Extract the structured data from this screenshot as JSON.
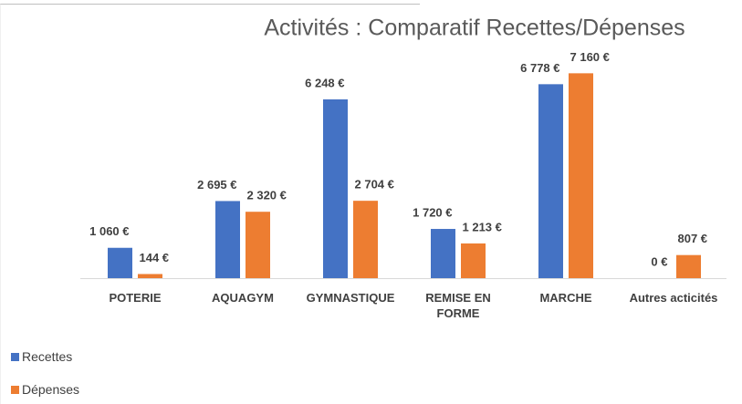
{
  "chart_data": {
    "type": "bar",
    "title": "Activités : Comparatif Recettes/Dépenses",
    "categories": [
      "POTERIE",
      "AQUAGYM",
      "GYMNASTIQUE",
      "REMISE EN FORME",
      "MARCHE",
      "Autres acticités"
    ],
    "series": [
      {
        "name": "Recettes",
        "color": "#4472c4",
        "values": [
          1060,
          2695,
          6248,
          1720,
          6778,
          0
        ],
        "value_labels": [
          "1 060 €",
          "2 695 €",
          "6 248 €",
          "1 720 €",
          "6 778 €",
          "0 €"
        ]
      },
      {
        "name": "Dépenses",
        "color": "#ed7d31",
        "values": [
          144,
          2320,
          2704,
          1213,
          7160,
          807
        ],
        "value_labels": [
          "144 €",
          "2 320 €",
          "2 704 €",
          "1 213 €",
          "7 160 €",
          "807 €"
        ]
      }
    ],
    "ylim": [
      0,
      8000
    ],
    "legend": "bottom-left"
  }
}
